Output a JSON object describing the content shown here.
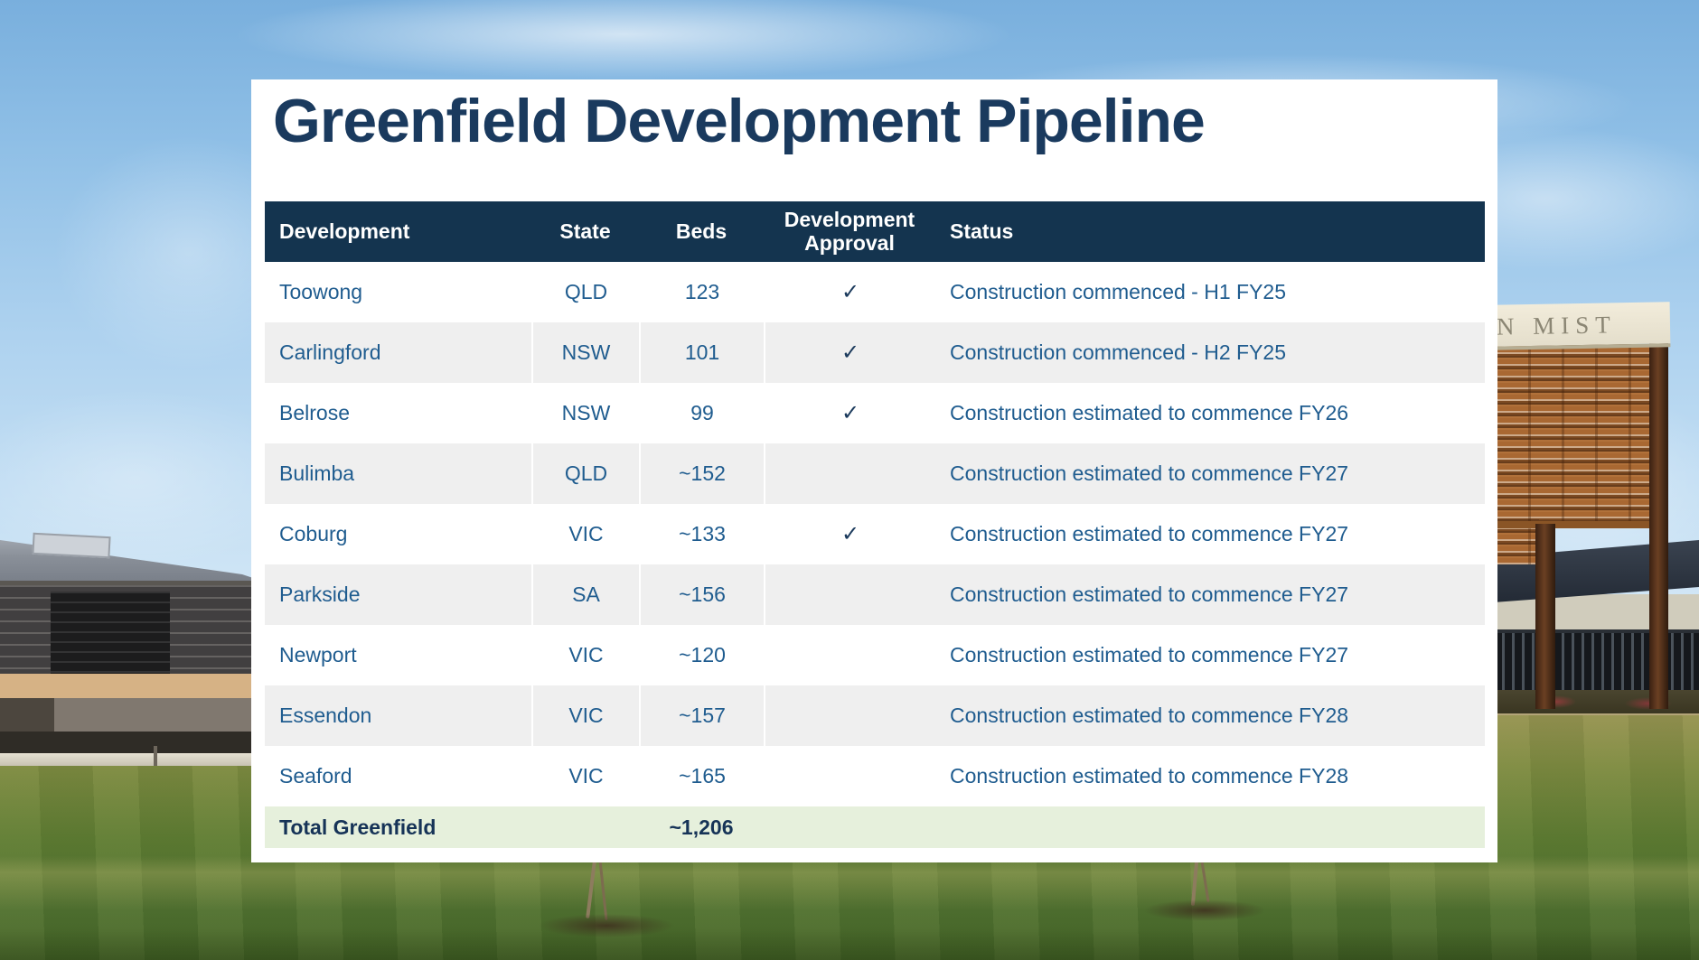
{
  "slide": {
    "title": "Greenfield Development Pipeline"
  },
  "table": {
    "columns": [
      "Development",
      "State",
      "Beds",
      "Development Approval",
      "Status"
    ],
    "rows": [
      {
        "development": "Toowong",
        "state": "QLD",
        "beds": "123",
        "approval": "✓",
        "status": "Construction commenced - H1 FY25"
      },
      {
        "development": "Carlingford",
        "state": "NSW",
        "beds": "101",
        "approval": "✓",
        "status": "Construction commenced - H2 FY25"
      },
      {
        "development": "Belrose",
        "state": "NSW",
        "beds": "99",
        "approval": "✓",
        "status": "Construction estimated to commence FY26"
      },
      {
        "development": "Bulimba",
        "state": "QLD",
        "beds": "~152",
        "approval": "",
        "status": "Construction estimated to commence FY27"
      },
      {
        "development": "Coburg",
        "state": "VIC",
        "beds": "~133",
        "approval": "✓",
        "status": "Construction estimated to commence FY27"
      },
      {
        "development": "Parkside",
        "state": "SA",
        "beds": "~156",
        "approval": "",
        "status": "Construction estimated to commence FY27"
      },
      {
        "development": "Newport",
        "state": "VIC",
        "beds": "~120",
        "approval": "",
        "status": "Construction estimated to commence FY27"
      },
      {
        "development": "Essendon",
        "state": "VIC",
        "beds": "~157",
        "approval": "",
        "status": "Construction estimated to commence FY28"
      },
      {
        "development": "Seaford",
        "state": "VIC",
        "beds": "~165",
        "approval": "",
        "status": "Construction estimated to commence FY28"
      }
    ],
    "total": {
      "label": "Total Greenfield",
      "beds": "~1,206"
    }
  },
  "background_photo": {
    "sign_text": "N MIST"
  },
  "colors": {
    "header_bg": "#14344f",
    "title_text": "#1a3a5e",
    "cell_text": "#1f5c8f",
    "check": "#1b3a5c",
    "row_alt_bg": "#efefef",
    "total_row_bg": "#e6f0dc"
  }
}
